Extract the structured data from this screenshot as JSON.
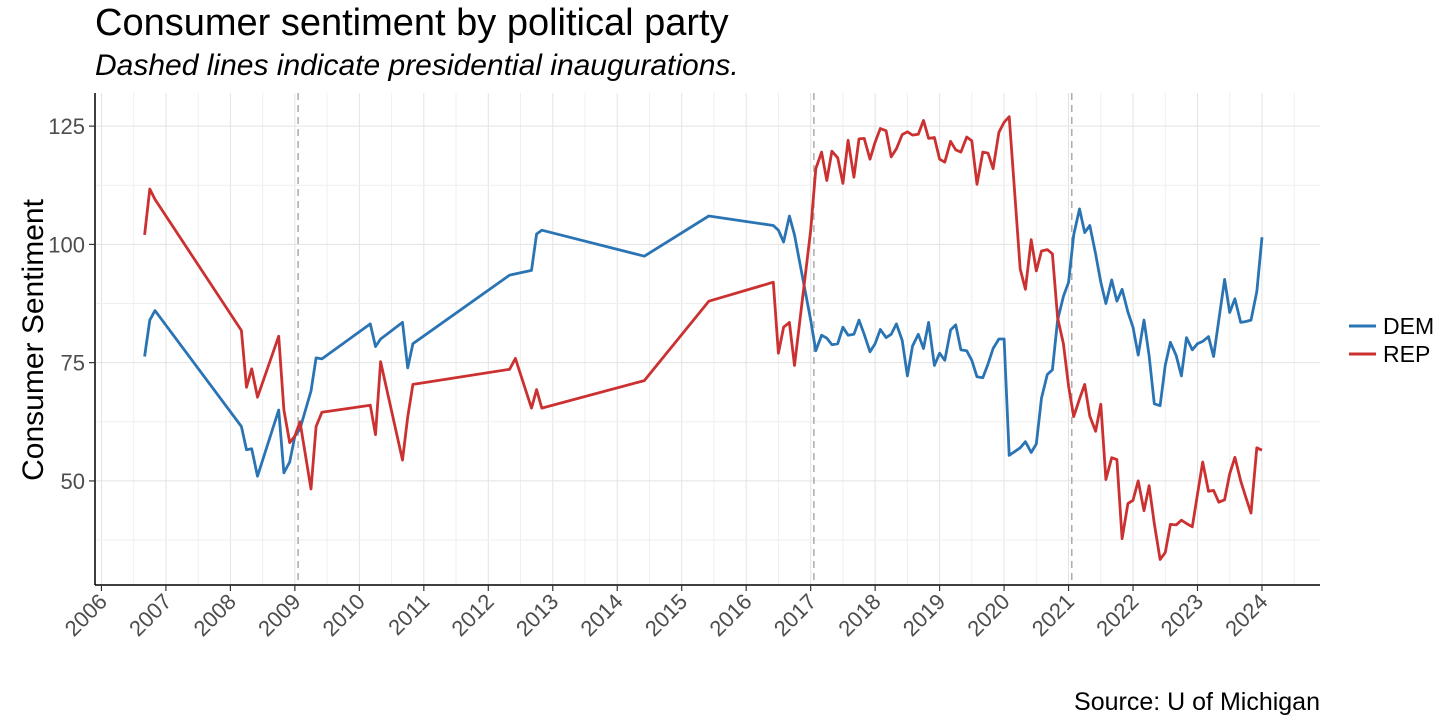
{
  "chart_data": {
    "type": "line",
    "title": "Consumer sentiment by political party",
    "subtitle": "Dashed lines indicate presidential inaugurations.",
    "source": "Source: U of Michigan",
    "xlabel": "",
    "ylabel": "Consumer Sentiment",
    "xlim": [
      2005.9,
      2024.9
    ],
    "ylim": [
      28,
      132
    ],
    "x_ticks": [
      2006,
      2007,
      2008,
      2009,
      2010,
      2011,
      2012,
      2013,
      2014,
      2015,
      2016,
      2017,
      2018,
      2019,
      2020,
      2021,
      2022,
      2023,
      2024
    ],
    "x_tick_labels": [
      "2006",
      "2007",
      "2008",
      "2009",
      "2010",
      "2011",
      "2012",
      "2013",
      "2014",
      "2015",
      "2016",
      "2017",
      "2018",
      "2019",
      "2020",
      "2021",
      "2022",
      "2023",
      "2024"
    ],
    "y_ticks": [
      50,
      75,
      100,
      125
    ],
    "y_tick_labels": [
      "50",
      "75",
      "100",
      "125"
    ],
    "grid": true,
    "legend_position": "right",
    "inaugurations": [
      2009.05,
      2017.05,
      2021.05
    ],
    "series": [
      {
        "name": "DEM",
        "color": "#2B74B4",
        "x": [
          2006.67,
          2006.75,
          2006.83,
          2008.17,
          2008.25,
          2008.33,
          2008.42,
          2008.75,
          2008.83,
          2008.92,
          2009.0,
          2009.08,
          2009.25,
          2009.33,
          2009.42,
          2010.17,
          2010.25,
          2010.33,
          2010.67,
          2010.75,
          2010.83,
          2012.33,
          2012.67,
          2012.75,
          2012.83,
          2014.42,
          2015.42,
          2016.42,
          2016.5,
          2016.58,
          2016.67,
          2016.75,
          2017.0,
          2017.08,
          2017.17,
          2017.25,
          2017.33,
          2017.42,
          2017.5,
          2017.58,
          2017.67,
          2017.75,
          2017.83,
          2017.92,
          2018.0,
          2018.08,
          2018.17,
          2018.25,
          2018.33,
          2018.42,
          2018.5,
          2018.58,
          2018.67,
          2018.75,
          2018.83,
          2018.92,
          2019.0,
          2019.08,
          2019.17,
          2019.25,
          2019.33,
          2019.42,
          2019.5,
          2019.58,
          2019.67,
          2019.75,
          2019.83,
          2019.92,
          2020.0,
          2020.08,
          2020.25,
          2020.33,
          2020.42,
          2020.5,
          2020.58,
          2020.67,
          2020.75,
          2020.83,
          2020.92,
          2021.0,
          2021.08,
          2021.17,
          2021.25,
          2021.33,
          2021.42,
          2021.5,
          2021.58,
          2021.67,
          2021.75,
          2021.83,
          2021.92,
          2022.0,
          2022.08,
          2022.17,
          2022.25,
          2022.33,
          2022.42,
          2022.5,
          2022.58,
          2022.67,
          2022.75,
          2022.83,
          2022.92,
          2023.0,
          2023.08,
          2023.17,
          2023.25,
          2023.33,
          2023.42,
          2023.5,
          2023.58,
          2023.67,
          2023.75,
          2023.83,
          2023.92,
          2024.0
        ],
        "values": [
          76.3,
          84.0,
          86.0,
          61.5,
          56.6,
          56.8,
          51.0,
          65.0,
          51.7,
          54.0,
          59.5,
          61.0,
          69.0,
          76.0,
          75.8,
          83.2,
          78.4,
          80.0,
          83.5,
          73.9,
          79.0,
          93.5,
          94.5,
          102.2,
          103.0,
          97.5,
          106.0,
          104.0,
          103.0,
          100.5,
          106.0,
          102.0,
          84.0,
          77.5,
          80.8,
          80.2,
          78.8,
          79.0,
          82.5,
          80.8,
          81.0,
          84.0,
          81.0,
          77.3,
          79.0,
          82.0,
          80.3,
          81.0,
          83.2,
          79.7,
          72.2,
          78.5,
          81.0,
          78.0,
          83.5,
          74.4,
          77.0,
          75.5,
          81.9,
          83.0,
          77.7,
          77.5,
          75.5,
          72.0,
          71.8,
          74.7,
          78.0,
          80.0,
          80.0,
          55.4,
          57.0,
          58.3,
          56.0,
          57.8,
          67.5,
          72.5,
          73.5,
          84.0,
          89.0,
          92.0,
          102.0,
          107.5,
          102.5,
          104.0,
          98.0,
          92.0,
          87.5,
          92.5,
          88.0,
          90.5,
          85.7,
          82.5,
          76.6,
          84.0,
          76.5,
          66.3,
          65.9,
          74.5,
          79.3,
          76.5,
          72.2,
          80.3,
          77.7,
          79.0,
          79.5,
          80.5,
          76.3,
          84.0,
          92.6,
          85.6,
          88.5,
          83.5,
          83.7,
          84.0,
          90.0,
          101.5
        ]
      },
      {
        "name": "REP",
        "color": "#CC3131",
        "x": [
          2006.67,
          2006.75,
          2006.83,
          2008.17,
          2008.25,
          2008.33,
          2008.42,
          2008.75,
          2008.83,
          2008.92,
          2009.0,
          2009.08,
          2009.25,
          2009.33,
          2009.42,
          2010.17,
          2010.25,
          2010.33,
          2010.67,
          2010.75,
          2010.83,
          2012.33,
          2012.42,
          2012.67,
          2012.75,
          2012.83,
          2014.42,
          2015.42,
          2016.42,
          2016.5,
          2016.58,
          2016.67,
          2016.75,
          2017.0,
          2017.08,
          2017.17,
          2017.25,
          2017.33,
          2017.42,
          2017.5,
          2017.58,
          2017.67,
          2017.75,
          2017.83,
          2017.92,
          2018.0,
          2018.08,
          2018.17,
          2018.25,
          2018.33,
          2018.42,
          2018.5,
          2018.58,
          2018.67,
          2018.75,
          2018.83,
          2018.92,
          2019.0,
          2019.08,
          2019.17,
          2019.25,
          2019.33,
          2019.42,
          2019.5,
          2019.58,
          2019.67,
          2019.75,
          2019.83,
          2019.92,
          2020.0,
          2020.08,
          2020.25,
          2020.33,
          2020.42,
          2020.5,
          2020.58,
          2020.67,
          2020.75,
          2020.83,
          2020.92,
          2021.0,
          2021.08,
          2021.17,
          2021.25,
          2021.33,
          2021.42,
          2021.5,
          2021.58,
          2021.67,
          2021.75,
          2021.83,
          2021.92,
          2022.0,
          2022.08,
          2022.17,
          2022.25,
          2022.33,
          2022.42,
          2022.5,
          2022.58,
          2022.67,
          2022.75,
          2022.83,
          2022.92,
          2023.0,
          2023.08,
          2023.17,
          2023.25,
          2023.33,
          2023.42,
          2023.5,
          2023.58,
          2023.67,
          2023.75,
          2023.83,
          2023.92,
          2024.0
        ],
        "values": [
          102.0,
          111.7,
          109.5,
          81.8,
          69.8,
          73.7,
          67.7,
          80.6,
          65.0,
          58.1,
          59.5,
          62.5,
          48.3,
          61.5,
          64.5,
          66.0,
          59.8,
          75.2,
          54.4,
          63.5,
          70.4,
          73.6,
          75.9,
          65.4,
          69.3,
          65.4,
          71.2,
          88.0,
          92.0,
          77.0,
          82.5,
          83.5,
          74.4,
          103.0,
          116.0,
          119.5,
          113.5,
          119.7,
          118.3,
          112.9,
          122.0,
          114.2,
          122.3,
          122.4,
          118.0,
          121.6,
          124.5,
          124.0,
          118.5,
          120.2,
          123.2,
          123.8,
          123.1,
          123.3,
          126.2,
          122.4,
          122.6,
          118.0,
          117.4,
          121.8,
          120.0,
          119.5,
          122.7,
          121.9,
          112.7,
          119.5,
          119.3,
          116.0,
          123.7,
          125.8,
          127.0,
          94.8,
          90.5,
          101.0,
          94.4,
          98.6,
          98.9,
          98.0,
          84.5,
          79.0,
          70.0,
          63.6,
          67.3,
          70.4,
          63.7,
          60.5,
          66.2,
          50.3,
          54.9,
          54.5,
          37.8,
          45.2,
          45.9,
          50.0,
          43.7,
          49.0,
          41.0,
          33.4,
          34.9,
          40.8,
          40.7,
          41.7,
          41.0,
          40.3,
          47.2,
          54.0,
          47.8,
          48.0,
          45.5,
          46.0,
          51.5,
          55.0,
          50.0,
          46.5,
          43.2,
          57.0,
          56.5
        ]
      }
    ]
  }
}
